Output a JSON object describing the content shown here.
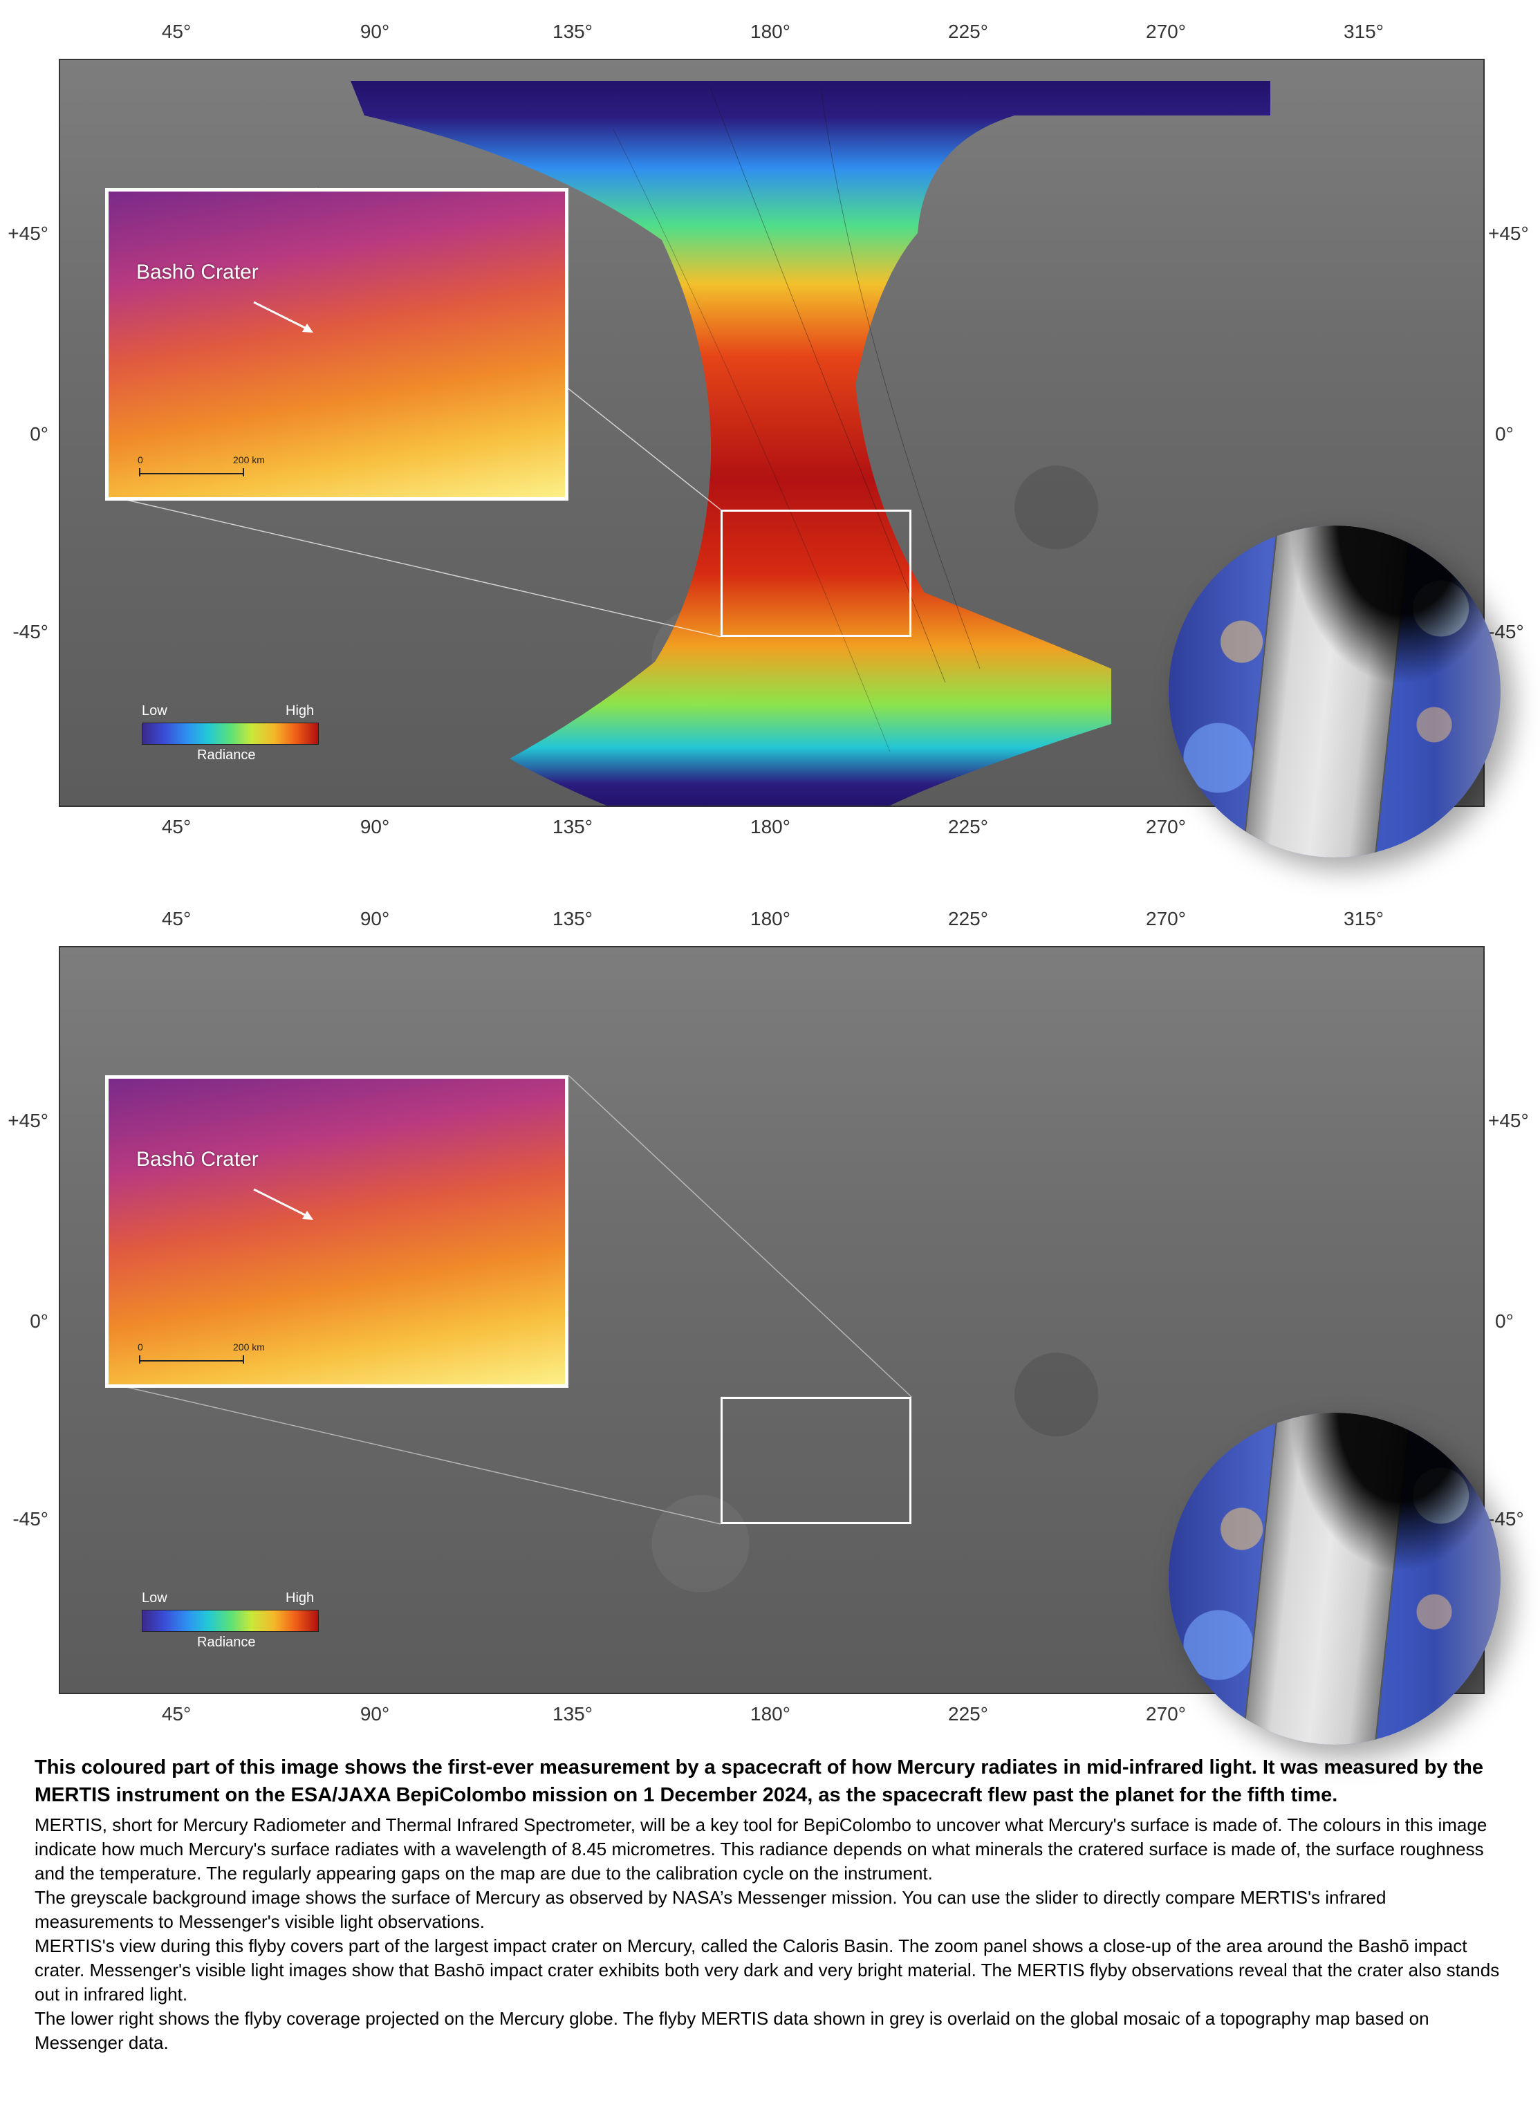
{
  "axes": {
    "lon_ticks": [
      "45°",
      "90°",
      "135°",
      "180°",
      "225°",
      "270°",
      "315°"
    ],
    "lat_ticks_left": [
      "+45°",
      "0°",
      "-45°"
    ],
    "lat_ticks_right": [
      "+45°",
      "0°",
      "-45°"
    ]
  },
  "inset": {
    "label": "Bashō Crater",
    "scale_start": "0",
    "scale_end": "200 km"
  },
  "legend": {
    "low": "Low",
    "high": "High",
    "title": "Radiance"
  },
  "colors": {
    "scale_low": "#3b2a8a",
    "scale_high": "#b01010",
    "frame": "#ffffff"
  },
  "caption": {
    "lead": "This coloured part of this image shows the first-ever measurement by a spacecraft of how Mercury radiates in mid-infrared light. It was measured by the MERTIS instrument on the ESA/JAXA BepiColombo mission on 1 December 2024, as the spacecraft flew past the planet for the fifth time.",
    "p1": "MERTIS, short for Mercury Radiometer and Thermal Infrared Spectrometer, will be a key tool for BepiColombo to uncover what Mercury's surface is made of. The colours in this image indicate how much Mercury's surface radiates with a wavelength of 8.45 micrometres. This radiance depends on what minerals the cratered surface is made of, the surface roughness and the temperature. The regularly appearing gaps on the map are due to the calibration cycle on the instrument.",
    "p2": "The greyscale background image shows the surface of Mercury as observed by NASA’s Messenger mission. You can use the slider to directly compare MERTIS's infrared measurements to Messenger's visible light observations.",
    "p3": "MERTIS's view during this flyby covers part of the largest impact crater on Mercury, called the Caloris Basin. The zoom panel shows a close-up of the area around the Bashō impact crater. Messenger's visible light images show that Bashō impact crater exhibits both very dark and very bright material. The MERTIS flyby observations reveal that the crater also stands out in infrared light.",
    "p4": "The lower right shows the flyby coverage projected on the Mercury globe. The flyby MERTIS data shown in grey is overlaid on the global mosaic of a topography map based on Messenger data."
  }
}
